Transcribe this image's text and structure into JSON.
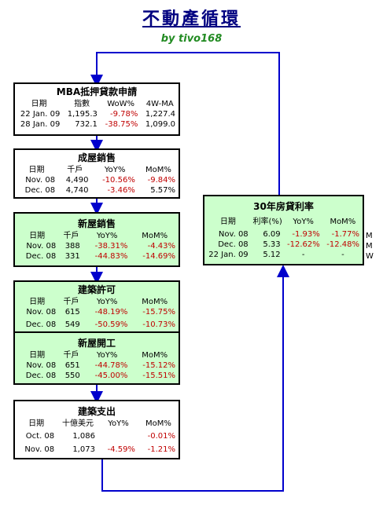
{
  "title": "不動產循環",
  "byline": "by tivo168",
  "boxes": {
    "mba": {
      "title": "MBA抵押貸款申請",
      "headers": [
        "日期",
        "指數",
        "WoW%",
        "4W-MA"
      ],
      "rows": [
        [
          "22 Jan. 09",
          "1,195.3",
          "-9.78%",
          "1,227.4"
        ],
        [
          "28 Jan. 09",
          "732.1",
          "-38.75%",
          "1,099.0"
        ]
      ]
    },
    "existing": {
      "title": "成屋銷售",
      "headers": [
        "日期",
        "千戶",
        "YoY%",
        "MoM%"
      ],
      "rows": [
        [
          "Nov. 08",
          "4,490",
          "-10.56%",
          "-9.84%"
        ],
        [
          "Dec. 08",
          "4,740",
          "-3.46%",
          "5.57%"
        ]
      ]
    },
    "newsales": {
      "title": "新屋銷售",
      "headers": [
        "日期",
        "千戶",
        "YoY%",
        "MoM%"
      ],
      "rows": [
        [
          "Nov. 08",
          "388",
          "-38.31%",
          "-4.43%"
        ],
        [
          "Dec. 08",
          "331",
          "-44.83%",
          "-14.69%"
        ]
      ]
    },
    "permits": {
      "title": "建築許可",
      "headers": [
        "日期",
        "千戶",
        "YoY%",
        "MoM%"
      ],
      "rows": [
        [
          "Nov. 08",
          "615",
          "-48.19%",
          "-15.75%"
        ],
        [
          "Dec. 08",
          "549",
          "-50.59%",
          "-10.73%"
        ]
      ]
    },
    "starts": {
      "title": "新屋開工",
      "headers": [
        "日期",
        "千戶",
        "YoY%",
        "MoM%"
      ],
      "rows": [
        [
          "Nov. 08",
          "651",
          "-44.78%",
          "-15.12%"
        ],
        [
          "Dec. 08",
          "550",
          "-45.00%",
          "-15.51%"
        ]
      ]
    },
    "spending": {
      "title": "建築支出",
      "headers": [
        "日期",
        "十億美元",
        "YoY%",
        "MoM%"
      ],
      "rows": [
        [
          "Oct. 08",
          "1,086",
          "",
          "-0.01%"
        ],
        [
          "Nov. 08",
          "1,073",
          "-4.59%",
          "-1.21%"
        ]
      ]
    },
    "mortgage": {
      "title": "30年房貸利率",
      "headers": [
        "日期",
        "利率(%)",
        "YoY%",
        "MoM%"
      ],
      "rows": [
        [
          "Nov. 08",
          "6.09",
          "-1.93%",
          "-1.77%"
        ],
        [
          "Dec. 08",
          "5.33",
          "-12.62%",
          "-12.48%"
        ],
        [
          "22 Jan. 09",
          "5.12",
          "-",
          "-"
        ]
      ],
      "side_labels": [
        "M",
        "M",
        "W"
      ]
    }
  },
  "colors": {
    "arrow": "#0000cc",
    "negative": "#c00000",
    "green_fill": "#ccffcc"
  }
}
